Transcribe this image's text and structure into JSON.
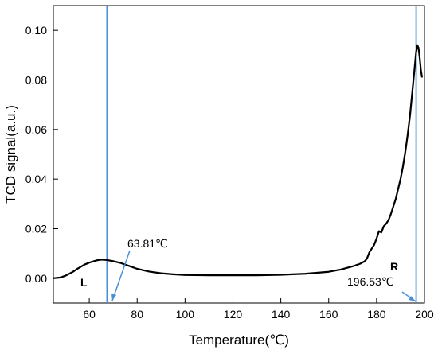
{
  "chart_data": {
    "type": "line",
    "title": "",
    "xlabel": "Temperature(℃)",
    "ylabel": "TCD signal(a.u.)",
    "xlim": [
      45,
      200
    ],
    "ylim": [
      -0.01,
      0.11
    ],
    "x_ticks": [
      60,
      80,
      100,
      120,
      140,
      160,
      180,
      200
    ],
    "x_tick_labels": [
      "60",
      "80",
      "100",
      "120",
      "140",
      "160",
      "180",
      "200"
    ],
    "y_ticks": [
      0.0,
      0.02,
      0.04,
      0.06,
      0.08,
      0.1
    ],
    "y_tick_labels": [
      "0.00",
      "0.02",
      "0.04",
      "0.06",
      "0.08",
      "0.10"
    ],
    "grid": false,
    "line_color": "#000000",
    "marker_color": "#4a90d9",
    "series": [
      {
        "x": [
          45,
          48,
          50,
          53,
          55,
          58,
          60,
          63,
          65,
          67,
          70,
          73,
          75,
          78,
          80,
          85,
          90,
          95,
          100,
          110,
          120,
          130,
          140,
          150,
          160,
          165,
          170,
          173,
          175,
          176,
          177,
          178,
          179,
          180,
          181,
          182,
          183,
          184,
          185,
          186,
          187,
          188,
          189,
          190,
          191,
          192,
          193,
          194,
          195,
          196,
          196.5,
          197,
          197.5,
          198,
          198.5,
          199
        ],
        "y": [
          0.0,
          0.0003,
          0.001,
          0.0025,
          0.0038,
          0.0055,
          0.0063,
          0.0072,
          0.0075,
          0.0074,
          0.0069,
          0.0062,
          0.0055,
          0.0045,
          0.0038,
          0.0027,
          0.002,
          0.0016,
          0.0013,
          0.0012,
          0.0012,
          0.0012,
          0.0014,
          0.0018,
          0.0026,
          0.0035,
          0.0048,
          0.0058,
          0.0068,
          0.008,
          0.0105,
          0.012,
          0.0135,
          0.016,
          0.019,
          0.0185,
          0.021,
          0.022,
          0.0235,
          0.026,
          0.029,
          0.032,
          0.036,
          0.04,
          0.045,
          0.051,
          0.058,
          0.066,
          0.076,
          0.086,
          0.091,
          0.094,
          0.093,
          0.089,
          0.084,
          0.081
        ]
      }
    ],
    "markers": [
      {
        "x": 63.81,
        "label": "63.81℃"
      },
      {
        "x": 196.53,
        "label": "196.53℃"
      }
    ],
    "region_labels": [
      "L",
      "R"
    ]
  }
}
